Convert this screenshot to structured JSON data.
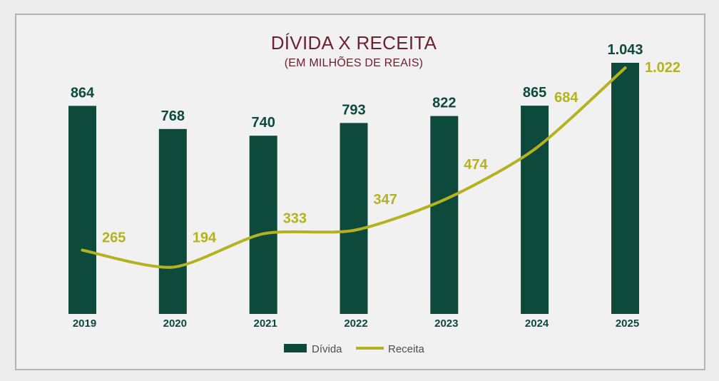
{
  "chart_data": {
    "type": "bar",
    "title": "DÍVIDA X RECEITA",
    "subtitle": "(EM MILHÕES DE REAIS)",
    "categories": [
      "2019",
      "2020",
      "2021",
      "2022",
      "2023",
      "2024",
      "2025"
    ],
    "series": [
      {
        "name": "Dívida",
        "type": "bar",
        "values": [
          864,
          768,
          740,
          793,
          822,
          865,
          1043
        ],
        "labels": [
          "864",
          "768",
          "740",
          "793",
          "822",
          "865",
          "1.043"
        ],
        "color": "#0d4a3b"
      },
      {
        "name": "Receita",
        "type": "line",
        "values": [
          265,
          194,
          333,
          347,
          474,
          684,
          1022
        ],
        "labels": [
          "265",
          "194",
          "333",
          "347",
          "474",
          "684",
          "1.022"
        ],
        "color": "#b5b220"
      }
    ],
    "grid": false,
    "legend": "bottom"
  },
  "colors": {
    "title": "#6d2131",
    "legend_text": "#4d4d4d",
    "frame_border": "#b4b4b4"
  }
}
